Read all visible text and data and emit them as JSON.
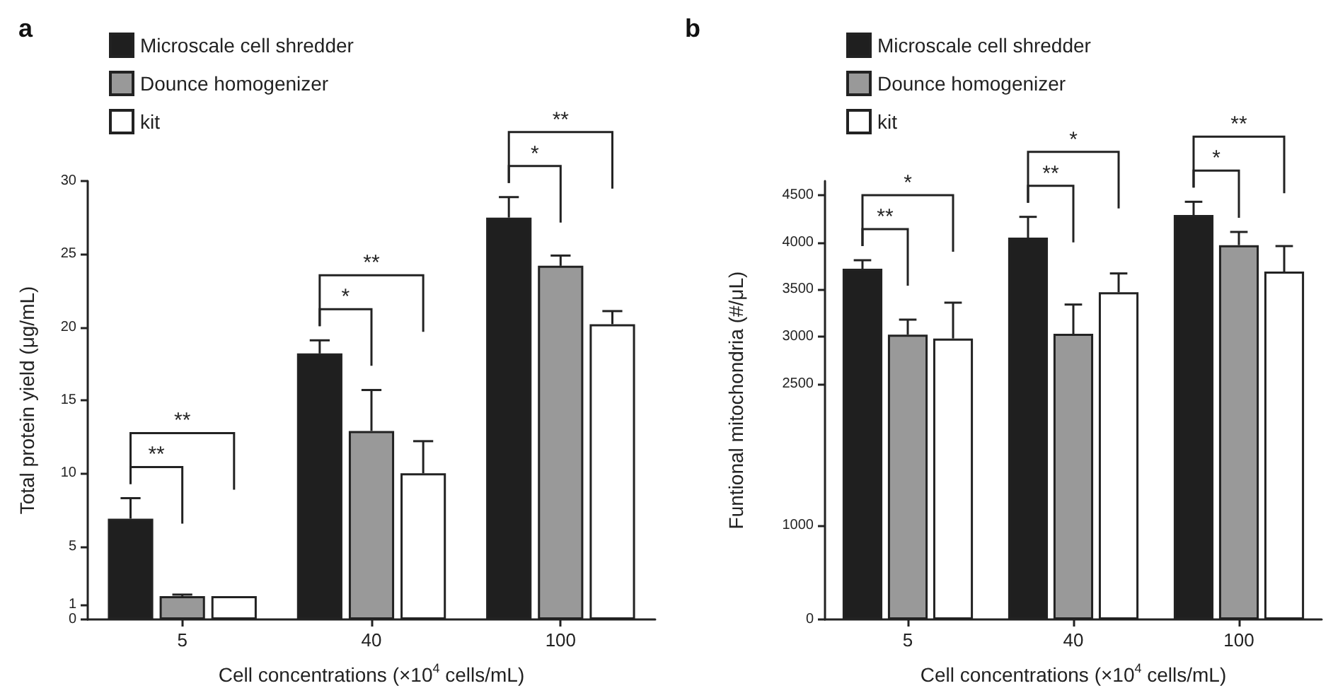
{
  "chart_data": [
    {
      "type": "bar",
      "title": "a",
      "xlabel": "Cell concentrations (×10$^{4}$ cells/mL)",
      "ylabel": "Total protein yield (μg/mL)",
      "categories": [
        "5",
        "40",
        "100"
      ],
      "series": [
        {
          "name": "Microscale cell shredder",
          "color": "#1f1f1f",
          "values": [
            6.9,
            18.2,
            27.5
          ],
          "errors": [
            [
              6.9,
              8.3
            ],
            [
              18.2,
              19.1
            ],
            [
              27.5,
              28.9
            ]
          ]
        },
        {
          "name": "Dounce homogenizer",
          "color": "#999999",
          "values": [
            1.6,
            12.9,
            24.2
          ],
          "errors": [
            [
              1.6,
              1.7
            ],
            [
              12.9,
              15.7
            ],
            [
              24.2,
              24.9
            ]
          ]
        },
        {
          "name": "kit",
          "color": "#ffffff",
          "values": [
            1.6,
            10.0,
            20.2
          ],
          "errors": [
            null,
            [
              10.0,
              12.2
            ],
            [
              20.2,
              21.1
            ]
          ]
        }
      ],
      "ylim": [
        0,
        30
      ],
      "yticks": [
        0,
        1,
        5,
        10,
        15,
        20,
        25,
        30
      ],
      "grid": false,
      "legend": "top left",
      "annotations": [
        "**",
        "**",
        "*",
        "**",
        "*",
        "**"
      ]
    },
    {
      "type": "bar",
      "title": "b",
      "xlabel": "Cell concentrations (×10$^{4}$ cells/mL)",
      "ylabel": "Funtional mitochondria (#/μL)",
      "categories": [
        "5",
        "40",
        "100"
      ],
      "series": [
        {
          "name": "Microscale cell shredder",
          "color": "#1f1f1f",
          "values": [
            3720,
            4050,
            4290
          ],
          "errors": [
            [
              3720,
              3810
            ],
            [
              4050,
              4270
            ],
            [
              4290,
              4430
            ]
          ]
        },
        {
          "name": "Dounce homogenizer",
          "color": "#999999",
          "values": [
            3020,
            3030,
            3970
          ],
          "errors": [
            [
              3020,
              3180
            ],
            [
              3030,
              3340
            ],
            [
              3970,
              4110
            ]
          ]
        },
        {
          "name": "kit",
          "color": "#ffffff",
          "values": [
            2980,
            3470,
            3690
          ],
          "errors": [
            [
              2980,
              3360
            ],
            [
              3470,
              3670
            ],
            [
              3690,
              3960
            ]
          ]
        }
      ],
      "ylim": [
        0,
        4650
      ],
      "yticks": [
        0,
        1000,
        2500,
        3000,
        3500,
        4000,
        4500
      ],
      "grid": false,
      "legend": "top left",
      "annotations": [
        "**",
        "*",
        "**",
        "*",
        "*",
        "**"
      ]
    }
  ]
}
